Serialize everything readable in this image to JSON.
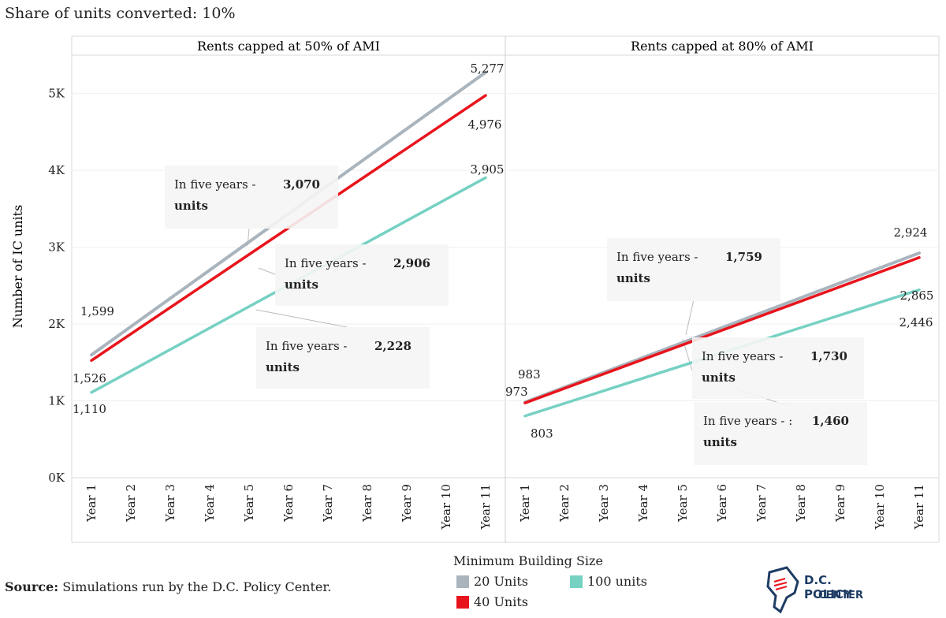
{
  "chart_data": {
    "type": "line",
    "title": "Share of units converted: 10%",
    "ylabel": "Number of IC units",
    "ylim": [
      0,
      5500
    ],
    "yticks": [
      0,
      1000,
      2000,
      3000,
      4000,
      5000
    ],
    "ytick_labels": [
      "0K",
      "1K",
      "2K",
      "3K",
      "4K",
      "5K"
    ],
    "categories": [
      "Year 1",
      "Year 2",
      "Year 3",
      "Year 4",
      "Year 5",
      "Year 6",
      "Year 7",
      "Year 8",
      "Year 9",
      "Year 10",
      "Year 11"
    ],
    "legend_title": "Minimum Building Size",
    "panels": [
      {
        "title": "Rents capped at 50% of AMI",
        "series": [
          {
            "name": "20 Units",
            "color": "#a9b4bd",
            "start": 1599,
            "end": 5277,
            "start_label": "1,599",
            "end_label": "5,277"
          },
          {
            "name": "40 Units",
            "color": "#e8141c",
            "start": 1526,
            "end": 4976,
            "start_label": "1,526",
            "end_label": "4,976"
          },
          {
            "name": "100 units",
            "color": "#76d1c3",
            "start": 1110,
            "end": 3905,
            "start_label": "1,110",
            "end_label": "3,905"
          }
        ],
        "annotations": [
          {
            "prefix": "In five years -",
            "value": "3,070",
            "unit": "units"
          },
          {
            "prefix": "In five years -",
            "value": "2,906",
            "unit": "units"
          },
          {
            "prefix": "In five years -",
            "value": "2,228",
            "unit": "units"
          }
        ]
      },
      {
        "title": "Rents capped at 80% of AMI",
        "series": [
          {
            "name": "20 Units",
            "color": "#a9b4bd",
            "start": 983,
            "end": 2924,
            "start_label": "983",
            "end_label": "2,924"
          },
          {
            "name": "40 Units",
            "color": "#e8141c",
            "start": 973,
            "end": 2865,
            "start_label": "973",
            "end_label": "2,865"
          },
          {
            "name": "100 units",
            "color": "#76d1c3",
            "start": 803,
            "end": 2446,
            "start_label": "803",
            "end_label": "2,446"
          }
        ],
        "annotations": [
          {
            "prefix": "In five years -",
            "value": "1,759",
            "unit": "units"
          },
          {
            "prefix": "In five years -",
            "value": "1,730",
            "unit": "units"
          },
          {
            "prefix": "In five years -  :",
            "value": "1,460",
            "unit": "units"
          }
        ]
      }
    ]
  },
  "source": {
    "label": "Source:",
    "text": "Simulations run by the D.C. Policy Center."
  },
  "logo": {
    "line1": "D.C. POLICY",
    "line2": "CENTER"
  }
}
